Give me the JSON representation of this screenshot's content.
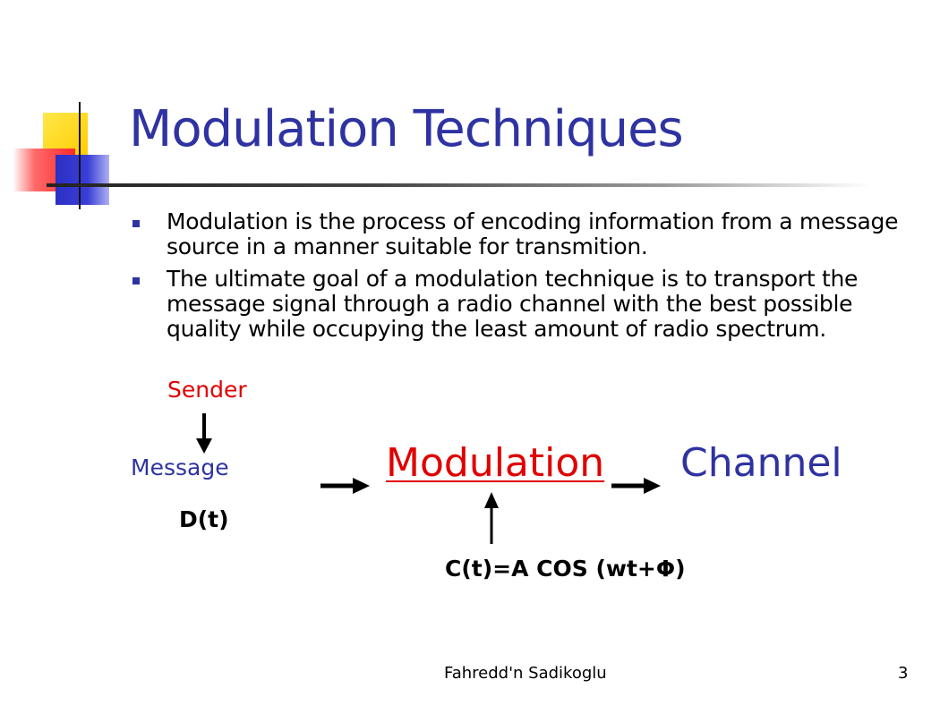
{
  "slide": {
    "title": "Modulation Techniques",
    "bullets": [
      "Modulation is the process of encoding information from a message source in a manner suitable for transmition.",
      "The ultimate goal of a modulation technique is to transport the message signal through a radio channel with the best possible quality while occupying the least amount of radio spectrum."
    ],
    "colors": {
      "title": "#2f33a1",
      "highlight_red": "#e00000",
      "bullet": "#2f33a1"
    }
  },
  "diagram": {
    "sender": "Sender",
    "message": "Message",
    "message_signal": "D(t)",
    "modulation": "Modulation",
    "channel": "Channel",
    "carrier": "C(t)=A COS (wt+Φ)"
  },
  "footer": {
    "author": "Fahredd'n Sadikoglu",
    "page_number": "3"
  }
}
